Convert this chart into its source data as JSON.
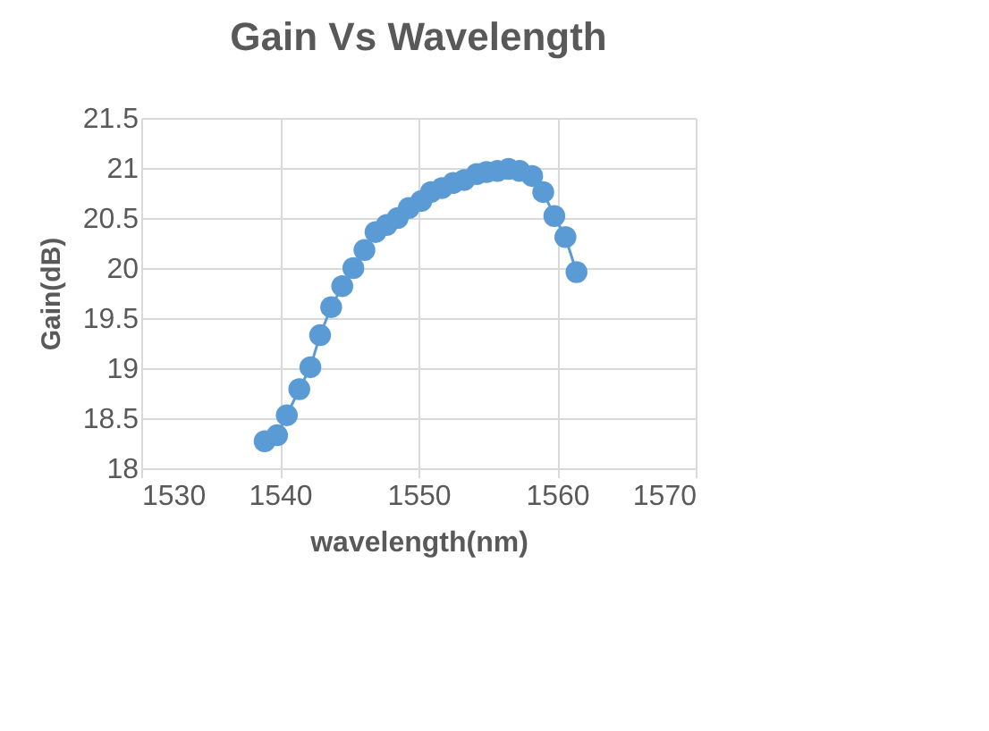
{
  "chart_data": {
    "type": "line",
    "title": "Gain Vs Wavelength",
    "xlabel": "wavelength(nm)",
    "ylabel": "Gain(dB)",
    "x": [
      1538.9,
      1539.8,
      1540.5,
      1541.4,
      1542.2,
      1542.9,
      1543.7,
      1544.5,
      1545.3,
      1546.1,
      1546.9,
      1547.7,
      1548.5,
      1549.3,
      1550.2,
      1550.9,
      1551.7,
      1552.5,
      1553.3,
      1554.2,
      1554.9,
      1555.7,
      1556.5,
      1557.3,
      1558.2,
      1559.0,
      1559.8,
      1560.6,
      1561.4
    ],
    "series": [
      {
        "color": "#5b9bd5",
        "values": [
          18.27,
          18.33,
          18.53,
          18.79,
          19.01,
          19.33,
          19.61,
          19.82,
          20.0,
          20.18,
          20.36,
          20.43,
          20.5,
          20.6,
          20.67,
          20.76,
          20.8,
          20.85,
          20.88,
          20.94,
          20.96,
          20.97,
          20.99,
          20.97,
          20.92,
          20.76,
          20.52,
          20.31,
          19.96
        ]
      }
    ],
    "xlim": [
      1530,
      1570
    ],
    "xticks": [
      1530,
      1540,
      1550,
      1560,
      1570
    ],
    "ylim": [
      18,
      21.5
    ],
    "yticks": [
      18,
      18.5,
      19,
      19.5,
      20,
      20.5,
      21,
      21.5
    ],
    "grid": true,
    "marker": "circle",
    "line_style": "solid"
  }
}
